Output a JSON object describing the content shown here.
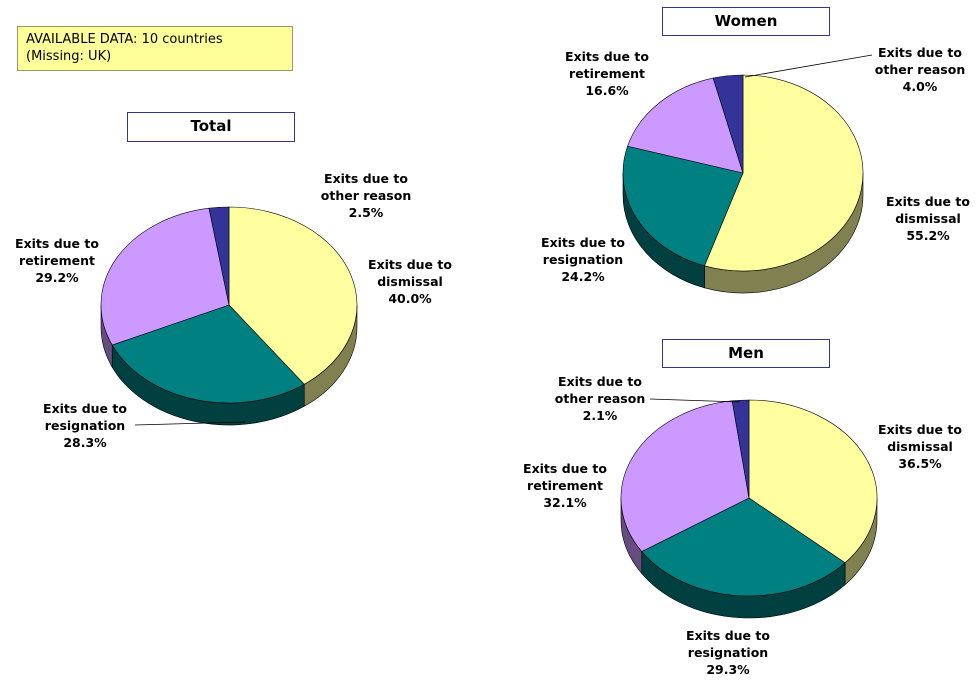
{
  "note": [
    "AVAILABLE DATA: 10 countries",
    "(Missing: UK)"
  ],
  "chart_data": [
    {
      "type": "pie",
      "title": "Total",
      "categories": [
        "Exits due to dismissal",
        "Exits due to resignation",
        "Exits due to retirement",
        "Exits due to other reason"
      ],
      "values": [
        40.0,
        28.3,
        29.2,
        2.5
      ],
      "value_labels": [
        "40.0%",
        "28.3%",
        "29.2%",
        "2.5%"
      ],
      "colors": [
        "#ffffa0",
        "#008080",
        "#cc99ff",
        "#333399"
      ]
    },
    {
      "type": "pie",
      "title": "Women",
      "categories": [
        "Exits due to dismissal",
        "Exits due to resignation",
        "Exits due to retirement",
        "Exits due to other reason"
      ],
      "values": [
        55.2,
        24.2,
        16.6,
        4.0
      ],
      "value_labels": [
        "55.2%",
        "24.2%",
        "16.6%",
        "4.0%"
      ],
      "colors": [
        "#ffffa0",
        "#008080",
        "#cc99ff",
        "#333399"
      ]
    },
    {
      "type": "pie",
      "title": "Men",
      "categories": [
        "Exits due to dismissal",
        "Exits due to resignation",
        "Exits due to retirement",
        "Exits due to other reason"
      ],
      "values": [
        36.5,
        29.3,
        32.1,
        2.1
      ],
      "value_labels": [
        "36.5%",
        "29.3%",
        "32.1%",
        "2.1%"
      ],
      "colors": [
        "#ffffa0",
        "#008080",
        "#cc99ff",
        "#333399"
      ]
    }
  ]
}
